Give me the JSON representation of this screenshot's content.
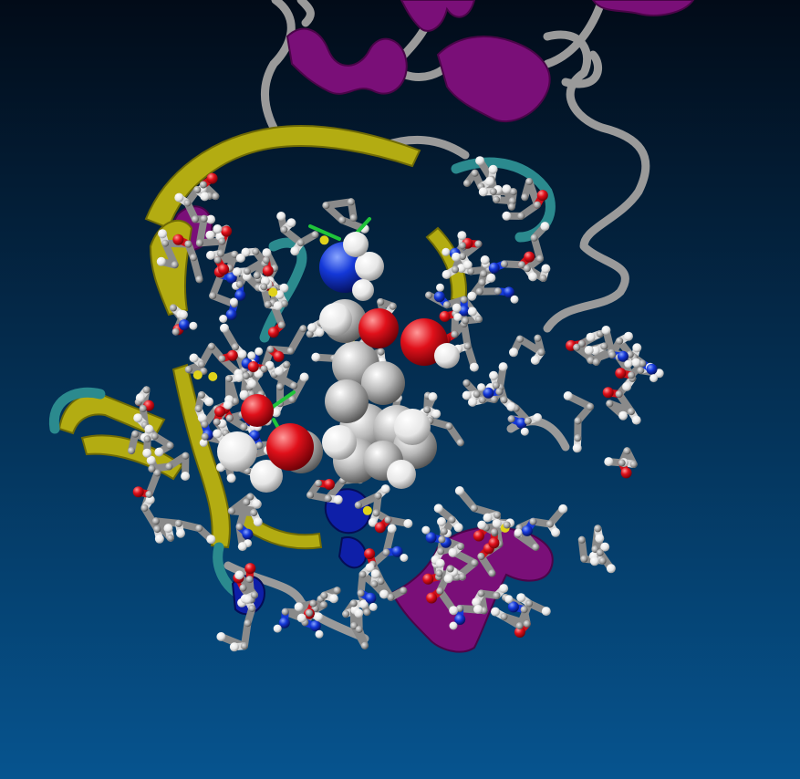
{
  "scene": {
    "kind": "molecular-visualization",
    "background": {
      "top_color": "#020b18",
      "bottom_color": "#06548f"
    },
    "representations": [
      {
        "name": "cartoon-helix",
        "color": "#7a0f78"
      },
      {
        "name": "cartoon-sheet",
        "color": "#b3ac12"
      },
      {
        "name": "cartoon-turn",
        "color": "#2b8a8e"
      },
      {
        "name": "cartoon-coil",
        "color": "#9a9a9a"
      },
      {
        "name": "cartoon-310-helix",
        "color": "#0e1fa8"
      },
      {
        "name": "licorice-residues",
        "color": "#8a8a8a"
      },
      {
        "name": "vdw-ligand",
        "color": "#b5b5b5"
      },
      {
        "name": "hydrogen-bonds",
        "color": "#1fc43a"
      }
    ],
    "atom_colors": {
      "carbon": "#8c8c8c",
      "oxygen": "#e0101a",
      "nitrogen": "#1438d8",
      "hydrogen": "#f2f2f2",
      "sulfur": "#e0d21a"
    }
  }
}
